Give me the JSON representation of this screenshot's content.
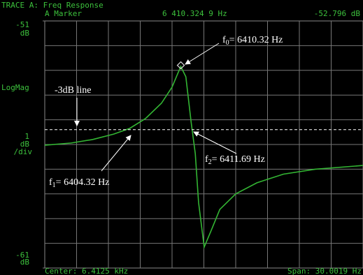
{
  "chart_data": {
    "type": "line",
    "header": {
      "title": "TRACE A: Freq Response",
      "marker_label": "A Marker",
      "marker_frequency_label": "6 410.324 9 Hz",
      "marker_level_label": "-52.796 dB"
    },
    "marker": {
      "x": 6410.3249,
      "y": -52.796
    },
    "y_axis": {
      "format_label": "LogMag",
      "top_unit": "dB",
      "bottom_unit": "dB",
      "div_unit": "dB",
      "div_suffix": "/div"
    },
    "ydiv": 1,
    "x_divisions": 10,
    "center_label": "Center: 6.4125 kHz",
    "span_label": "Span: 30.0019 Hz",
    "xlim": [
      6397.5,
      6427.5
    ],
    "ylim": [
      -61,
      -51
    ],
    "yticks": [
      -61,
      -51
    ],
    "grid": true,
    "series": [
      {
        "name": "Freq Response",
        "color": "#33b533",
        "x": [
          6397.5,
          6400,
          6402,
          6404,
          6405.5,
          6407,
          6408.5,
          6409.5,
          6410.32,
          6410.8,
          6411.3,
          6411.69,
          6412.0,
          6412.53,
          6413.2,
          6414,
          6415.5,
          6417.5,
          6420,
          6423,
          6427.5
        ],
        "values": [
          -56.03,
          -55.94,
          -55.8,
          -55.58,
          -55.35,
          -54.95,
          -54.33,
          -53.68,
          -52.84,
          -53.26,
          -55.1,
          -56.37,
          -58.35,
          -60.15,
          -59.47,
          -58.63,
          -58.0,
          -57.55,
          -57.2,
          -57.0,
          -56.85
        ]
      }
    ],
    "threshold": {
      "value": -55.4,
      "label": "-3dB line"
    },
    "annotations": [
      {
        "base": "f",
        "sub": "0",
        "text": "= 6410.32 Hz"
      },
      {
        "base": "f",
        "sub": "1",
        "text": "= 6404.32 Hz"
      },
      {
        "base": "f",
        "sub": "2",
        "text": "= 6411.69 Hz"
      }
    ]
  }
}
